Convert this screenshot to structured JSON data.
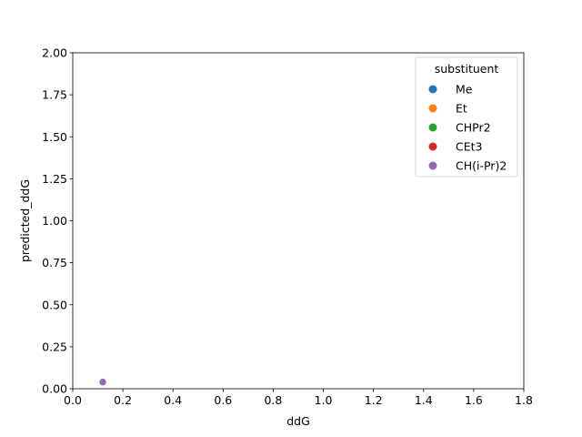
{
  "chart_data": {
    "type": "scatter",
    "xlabel": "ddG",
    "ylabel": "predicted_ddG",
    "xlim": [
      0,
      1.8
    ],
    "ylim": [
      0,
      2.0
    ],
    "x_ticks": [
      "0.0",
      "0.2",
      "0.4",
      "0.6",
      "0.8",
      "1.0",
      "1.2",
      "1.4",
      "1.6",
      "1.8"
    ],
    "y_ticks": [
      "0.00",
      "0.25",
      "0.50",
      "0.75",
      "1.00",
      "1.25",
      "1.50",
      "1.75",
      "2.00"
    ],
    "grid": false,
    "legend": {
      "title": "substituent",
      "placement": "top-right",
      "entries": [
        {
          "label": "Me",
          "color": "#1f77b4"
        },
        {
          "label": "Et",
          "color": "#ff7f0e"
        },
        {
          "label": "CHPr2",
          "color": "#2ca02c"
        },
        {
          "label": "CEt3",
          "color": "#d62728"
        },
        {
          "label": "CH(i-Pr)2",
          "color": "#9467bd"
        }
      ]
    },
    "series": [
      {
        "name": "Me",
        "color": "#1f77b4",
        "points": []
      },
      {
        "name": "Et",
        "color": "#ff7f0e",
        "points": []
      },
      {
        "name": "CHPr2",
        "color": "#2ca02c",
        "points": []
      },
      {
        "name": "CEt3",
        "color": "#d62728",
        "points": []
      },
      {
        "name": "CH(i-Pr)2",
        "color": "#9467bd",
        "points": [
          {
            "x": 0.12,
            "y": 0.04
          }
        ]
      }
    ]
  }
}
